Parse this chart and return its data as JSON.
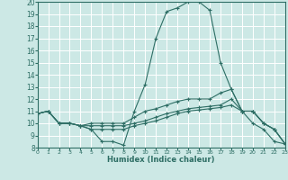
{
  "xlabel": "Humidex (Indice chaleur)",
  "background_color": "#cce8e5",
  "line_color": "#2e6e65",
  "grid_color": "#ffffff",
  "xlim": [
    0,
    23
  ],
  "ylim": [
    8,
    20
  ],
  "xticks": [
    0,
    1,
    2,
    3,
    4,
    5,
    6,
    7,
    8,
    9,
    10,
    11,
    12,
    13,
    14,
    15,
    16,
    17,
    18,
    19,
    20,
    21,
    22,
    23
  ],
  "yticks": [
    8,
    9,
    10,
    11,
    12,
    13,
    14,
    15,
    16,
    17,
    18,
    19,
    20
  ],
  "lines": [
    {
      "x": [
        0,
        1,
        2,
        3,
        4,
        5,
        6,
        7,
        8,
        9,
        10,
        11,
        12,
        13,
        14,
        15,
        16,
        17,
        18,
        19,
        20,
        21,
        22,
        23
      ],
      "y": [
        10.8,
        11.0,
        10.0,
        10.0,
        9.8,
        9.5,
        8.5,
        8.5,
        8.2,
        11.0,
        13.2,
        17.0,
        19.2,
        19.5,
        20.0,
        20.0,
        19.3,
        15.0,
        12.8,
        11.0,
        10.0,
        9.5,
        8.5,
        8.3
      ]
    },
    {
      "x": [
        0,
        1,
        2,
        3,
        4,
        5,
        6,
        7,
        8,
        9,
        10,
        11,
        12,
        13,
        14,
        15,
        16,
        17,
        18,
        19,
        20,
        21,
        22,
        23
      ],
      "y": [
        10.8,
        11.0,
        10.0,
        10.0,
        9.8,
        10.0,
        10.0,
        10.0,
        10.0,
        10.5,
        11.0,
        11.2,
        11.5,
        11.8,
        12.0,
        12.0,
        12.0,
        12.5,
        12.8,
        11.0,
        11.0,
        10.0,
        9.5,
        8.3
      ]
    },
    {
      "x": [
        0,
        1,
        2,
        3,
        4,
        5,
        6,
        7,
        8,
        9,
        10,
        11,
        12,
        13,
        14,
        15,
        16,
        17,
        18,
        19,
        20,
        21,
        22,
        23
      ],
      "y": [
        10.8,
        11.0,
        10.0,
        10.0,
        9.8,
        9.8,
        9.8,
        9.8,
        9.8,
        10.0,
        10.2,
        10.5,
        10.8,
        11.0,
        11.2,
        11.3,
        11.4,
        11.5,
        12.0,
        11.0,
        11.0,
        10.0,
        9.5,
        8.3
      ]
    },
    {
      "x": [
        0,
        1,
        2,
        3,
        4,
        5,
        6,
        7,
        8,
        9,
        10,
        11,
        12,
        13,
        14,
        15,
        16,
        17,
        18,
        19,
        20,
        21,
        22,
        23
      ],
      "y": [
        10.8,
        11.0,
        10.0,
        10.0,
        9.8,
        9.5,
        9.5,
        9.5,
        9.5,
        9.8,
        10.0,
        10.2,
        10.5,
        10.8,
        11.0,
        11.1,
        11.2,
        11.3,
        11.5,
        11.0,
        11.0,
        10.0,
        9.5,
        8.3
      ]
    }
  ]
}
